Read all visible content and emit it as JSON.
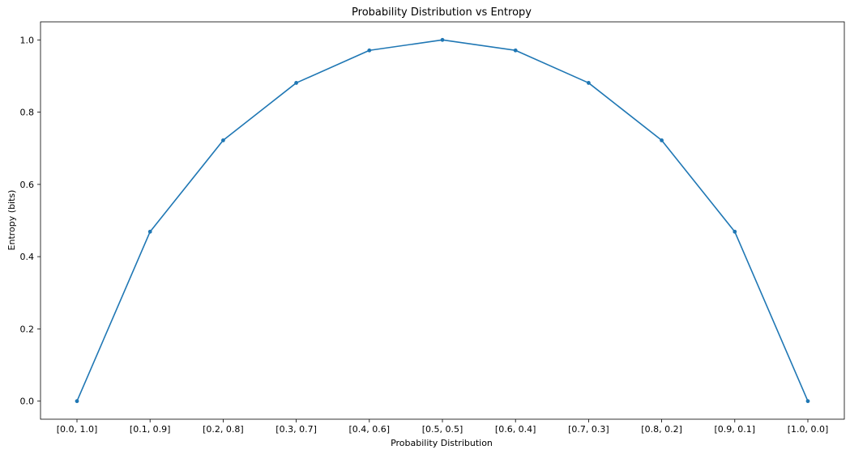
{
  "chart_data": {
    "type": "line",
    "title": "Probability Distribution vs Entropy",
    "xlabel": "Probability Distribution",
    "ylabel": "Entropy (bits)",
    "categories": [
      "[0.0, 1.0]",
      "[0.1, 0.9]",
      "[0.2, 0.8]",
      "[0.3, 0.7]",
      "[0.4, 0.6]",
      "[0.5, 0.5]",
      "[0.6, 0.4]",
      "[0.7, 0.3]",
      "[0.8, 0.2]",
      "[0.9, 0.1]",
      "[1.0, 0.0]"
    ],
    "series": [
      {
        "values": [
          0.0,
          0.469,
          0.722,
          0.881,
          0.971,
          1.0,
          0.971,
          0.881,
          0.722,
          0.469,
          0.0
        ],
        "color": "#1f77b4",
        "marker": "circle"
      }
    ],
    "ylim": [
      -0.05,
      1.05
    ],
    "yticks": [
      0.0,
      0.2,
      0.4,
      0.6,
      0.8,
      1.0
    ],
    "ytick_labels": [
      "0.0",
      "0.2",
      "0.4",
      "0.6",
      "0.8",
      "1.0"
    ],
    "grid": false,
    "legend": false
  }
}
